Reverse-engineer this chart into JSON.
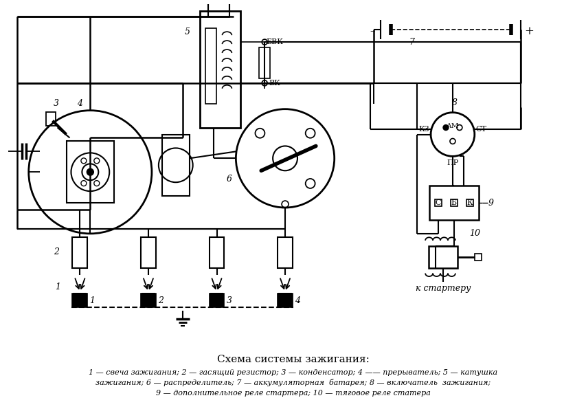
{
  "title": "Схема системы зажигания:",
  "caption_line1": "1 — свеча зажигания; 2 — гасящий резистор; 3 — конденсатор; 4 —— прерыватель; 5 — катушка",
  "caption_line2": "зажигания; 6 — распределитель; 7 — аккумуляторная  батарея; 8 — включатель  зажигания;",
  "caption_line3": "9 — дополнительное реле стартера; 10 — тяговое реле статера",
  "bg_color": "#ffffff",
  "line_color": "#000000",
  "fig_width": 8.54,
  "fig_height": 6.11,
  "dpi": 100
}
